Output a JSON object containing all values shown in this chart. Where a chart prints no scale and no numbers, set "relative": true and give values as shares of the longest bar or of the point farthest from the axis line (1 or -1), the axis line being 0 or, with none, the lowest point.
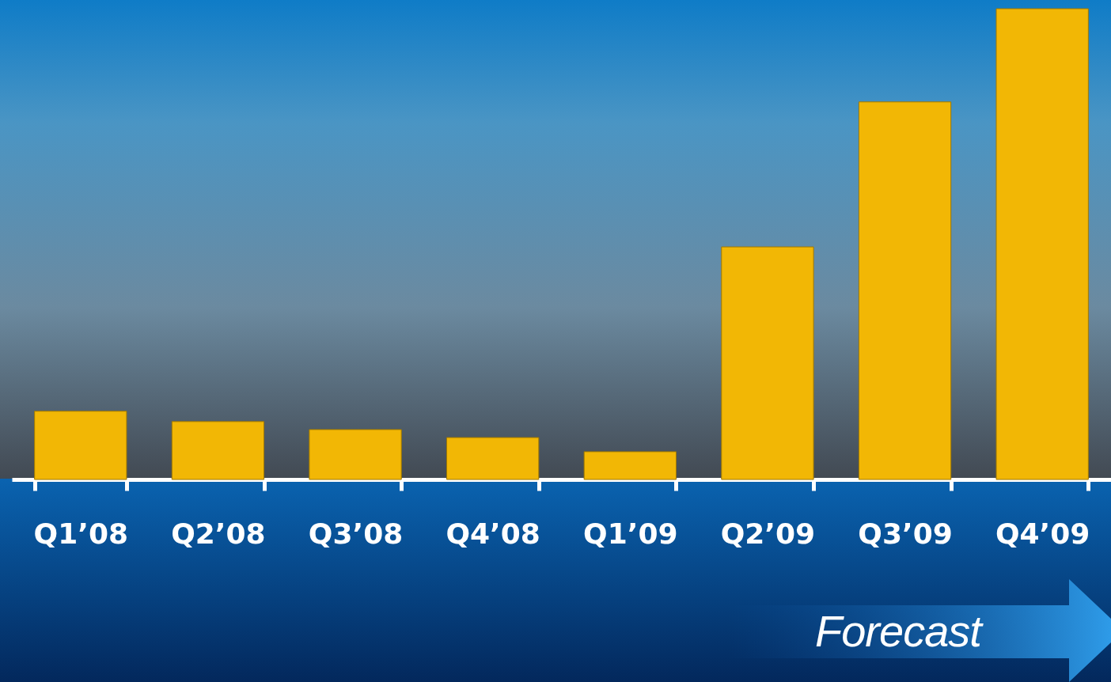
{
  "chart_data": {
    "type": "bar",
    "relative": true,
    "categories": [
      "Q1’08",
      "Q2’08",
      "Q3’08",
      "Q4’08",
      "Q1’09",
      "Q2’09",
      "Q3’09",
      "Q4’09"
    ],
    "values": [
      0.145,
      0.123,
      0.106,
      0.089,
      0.059,
      0.494,
      0.802,
      1
    ],
    "color": "#f2b705",
    "annotations": [
      "Forecast"
    ]
  }
}
